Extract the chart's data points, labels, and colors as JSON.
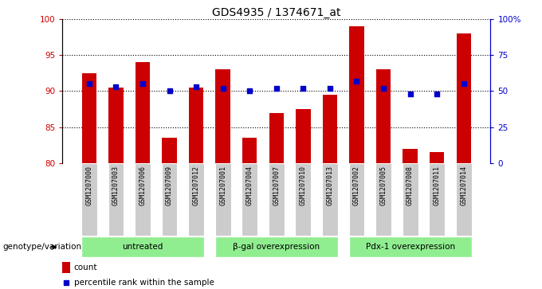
{
  "title": "GDS4935 / 1374671_at",
  "samples": [
    "GSM1207000",
    "GSM1207003",
    "GSM1207006",
    "GSM1207009",
    "GSM1207012",
    "GSM1207001",
    "GSM1207004",
    "GSM1207007",
    "GSM1207010",
    "GSM1207013",
    "GSM1207002",
    "GSM1207005",
    "GSM1207008",
    "GSM1207011",
    "GSM1207014"
  ],
  "counts": [
    92.5,
    90.5,
    94.0,
    83.5,
    90.5,
    93.0,
    83.5,
    87.0,
    87.5,
    89.5,
    99.0,
    93.0,
    82.0,
    81.5,
    98.0
  ],
  "percentiles": [
    55,
    53,
    55,
    50,
    53,
    52,
    50,
    52,
    52,
    52,
    57,
    52,
    48,
    48,
    55
  ],
  "ylim_left": [
    80,
    100
  ],
  "ylim_right": [
    0,
    100
  ],
  "yticks_left": [
    80,
    85,
    90,
    95,
    100
  ],
  "yticks_right": [
    0,
    25,
    50,
    75,
    100
  ],
  "ytick_labels_right": [
    "0",
    "25",
    "50",
    "75",
    "100%"
  ],
  "grid_values": [
    85,
    90,
    95,
    100
  ],
  "bar_color": "#cc0000",
  "dot_color": "#0000cc",
  "groups": [
    {
      "label": "untreated",
      "start": 0,
      "end": 5
    },
    {
      "label": "β-gal overexpression",
      "start": 5,
      "end": 10
    },
    {
      "label": "Pdx-1 overexpression",
      "start": 10,
      "end": 15
    }
  ],
  "group_color": "#90ee90",
  "group_label_prefix": "genotype/variation",
  "legend_count_label": "count",
  "legend_pct_label": "percentile rank within the sample",
  "bar_width": 0.55,
  "xlabel_bg": "#cccccc"
}
